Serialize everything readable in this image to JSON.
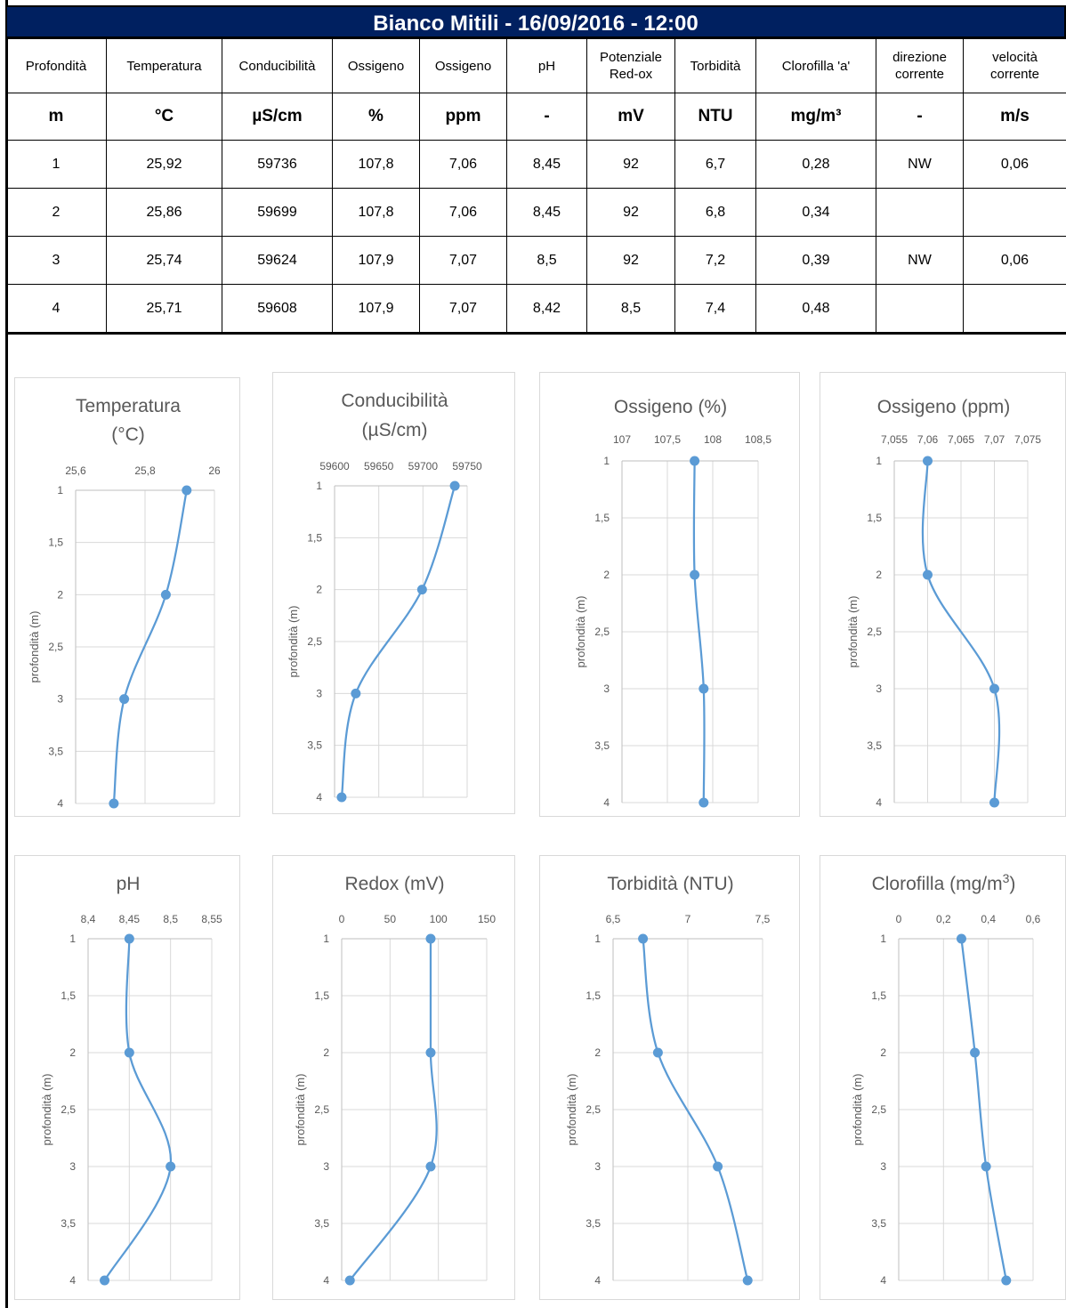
{
  "title": "Bianco Mitili - 16/09/2016 - 12:00",
  "table": {
    "headers": [
      "Profondità",
      "Temperatura",
      "Conducibilità",
      "Ossigeno",
      "Ossigeno",
      "pH",
      "Potenziale\nRed-ox",
      "Torbidità",
      "Clorofilla 'a'",
      "direzione\ncorrente",
      "velocità\ncorrente"
    ],
    "units": [
      "m",
      "°C",
      "µS/cm",
      "%",
      "ppm",
      "-",
      "mV",
      "NTU",
      "mg/m³",
      "-",
      "m/s"
    ],
    "rows": [
      [
        "1",
        "25,92",
        "59736",
        "107,8",
        "7,06",
        "8,45",
        "92",
        "6,7",
        "0,28",
        "NW",
        "0,06"
      ],
      [
        "2",
        "25,86",
        "59699",
        "107,8",
        "7,06",
        "8,45",
        "92",
        "6,8",
        "0,34",
        "",
        ""
      ],
      [
        "3",
        "25,74",
        "59624",
        "107,9",
        "7,07",
        "8,5",
        "92",
        "7,2",
        "0,39",
        "NW",
        "0,06"
      ],
      [
        "4",
        "25,71",
        "59608",
        "107,9",
        "7,07",
        "8,42",
        "8,5",
        "7,4",
        "0,48",
        "",
        ""
      ]
    ]
  },
  "colors": {
    "title_bg": "#002060",
    "series": "#5b9bd5",
    "grid": "#d9d9d9",
    "text": "#595959"
  },
  "chart_data": [
    {
      "type": "line",
      "title": "Temperatura (°C)",
      "title_lines": [
        "Temperatura",
        "(°C)"
      ],
      "ylabel": "profondità (m)",
      "xlim": [
        25.6,
        26
      ],
      "xticks": [
        "25,6",
        "25,8",
        "26"
      ],
      "ylim": [
        1,
        4
      ],
      "yticks": [
        "1",
        "1,5",
        "2",
        "2,5",
        "3",
        "3,5",
        "4"
      ],
      "points": [
        {
          "x": 25.92,
          "y": 1
        },
        {
          "x": 25.86,
          "y": 2
        },
        {
          "x": 25.74,
          "y": 3
        },
        {
          "x": 25.71,
          "y": 4
        }
      ]
    },
    {
      "type": "line",
      "title": "Conducibilità (µS/cm)",
      "title_lines": [
        "Conducibilità",
        "(µS/cm)"
      ],
      "ylabel": "profondità (m)",
      "xlim": [
        59600,
        59750
      ],
      "xticks": [
        "59600",
        "59650",
        "59700",
        "59750"
      ],
      "ylim": [
        1,
        4
      ],
      "yticks": [
        "1",
        "1,5",
        "2",
        "2,5",
        "3",
        "3,5",
        "4"
      ],
      "points": [
        {
          "x": 59736,
          "y": 1
        },
        {
          "x": 59699,
          "y": 2
        },
        {
          "x": 59624,
          "y": 3
        },
        {
          "x": 59608,
          "y": 4
        }
      ]
    },
    {
      "type": "line",
      "title": "Ossigeno (%)",
      "title_lines": [
        "Ossigeno (%)"
      ],
      "ylabel": "profondità (m)",
      "xlim": [
        107,
        108.5
      ],
      "xticks": [
        "107",
        "107,5",
        "108",
        "108,5"
      ],
      "ylim": [
        1,
        4
      ],
      "yticks": [
        "1",
        "1,5",
        "2",
        "2,5",
        "3",
        "3,5",
        "4"
      ],
      "points": [
        {
          "x": 107.8,
          "y": 1
        },
        {
          "x": 107.8,
          "y": 2
        },
        {
          "x": 107.9,
          "y": 3
        },
        {
          "x": 107.9,
          "y": 4
        }
      ]
    },
    {
      "type": "line",
      "title": "Ossigeno (ppm)",
      "title_lines": [
        "Ossigeno (ppm)"
      ],
      "ylabel": "profondità (m)",
      "xlim": [
        7.055,
        7.075
      ],
      "xticks": [
        "7,055",
        "7,06",
        "7,065",
        "7,07",
        "7,075"
      ],
      "ylim": [
        1,
        4
      ],
      "yticks": [
        "1",
        "1,5",
        "2",
        "2,5",
        "3",
        "3,5",
        "4"
      ],
      "points": [
        {
          "x": 7.06,
          "y": 1
        },
        {
          "x": 7.06,
          "y": 2
        },
        {
          "x": 7.07,
          "y": 3
        },
        {
          "x": 7.07,
          "y": 4
        }
      ]
    },
    {
      "type": "line",
      "title": "pH",
      "title_lines": [
        "pH"
      ],
      "ylabel": "profondità (m)",
      "xlim": [
        8.4,
        8.55
      ],
      "xticks": [
        "8,4",
        "8,45",
        "8,5",
        "8,55"
      ],
      "ylim": [
        1,
        4
      ],
      "yticks": [
        "1",
        "1,5",
        "2",
        "2,5",
        "3",
        "3,5",
        "4"
      ],
      "points": [
        {
          "x": 8.45,
          "y": 1
        },
        {
          "x": 8.45,
          "y": 2
        },
        {
          "x": 8.5,
          "y": 3
        },
        {
          "x": 8.42,
          "y": 4
        }
      ]
    },
    {
      "type": "line",
      "title": "Redox (mV)",
      "title_lines": [
        "Redox (mV)"
      ],
      "ylabel": "profondità (m)",
      "xlim": [
        0,
        150
      ],
      "xticks": [
        "0",
        "50",
        "100",
        "150"
      ],
      "ylim": [
        1,
        4
      ],
      "yticks": [
        "1",
        "1,5",
        "2",
        "2,5",
        "3",
        "3,5",
        "4"
      ],
      "points": [
        {
          "x": 92,
          "y": 1
        },
        {
          "x": 92,
          "y": 2
        },
        {
          "x": 92,
          "y": 3
        },
        {
          "x": 8.5,
          "y": 4
        }
      ]
    },
    {
      "type": "line",
      "title": "Torbidità (NTU)",
      "title_lines": [
        "Torbidità (NTU)"
      ],
      "ylabel": "profondità (m)",
      "xlim": [
        6.5,
        7.5
      ],
      "xticks": [
        "6,5",
        "7",
        "7,5"
      ],
      "ylim": [
        1,
        4
      ],
      "yticks": [
        "1",
        "1,5",
        "2",
        "2,5",
        "3",
        "3,5",
        "4"
      ],
      "points": [
        {
          "x": 6.7,
          "y": 1
        },
        {
          "x": 6.8,
          "y": 2
        },
        {
          "x": 7.2,
          "y": 3
        },
        {
          "x": 7.4,
          "y": 4
        }
      ]
    },
    {
      "type": "line",
      "title": "Clorofilla (mg/m3)",
      "title_lines": [
        "Clorofilla (mg/m",
        "3",
        ")"
      ],
      "ylabel": "profondità (m)",
      "xlim": [
        0,
        0.6
      ],
      "xticks": [
        "0",
        "0,2",
        "0,4",
        "0,6"
      ],
      "ylim": [
        1,
        4
      ],
      "yticks": [
        "1",
        "1,5",
        "2",
        "2,5",
        "3",
        "3,5",
        "4"
      ],
      "points": [
        {
          "x": 0.28,
          "y": 1
        },
        {
          "x": 0.34,
          "y": 2
        },
        {
          "x": 0.39,
          "y": 3
        },
        {
          "x": 0.48,
          "y": 4
        }
      ]
    }
  ]
}
